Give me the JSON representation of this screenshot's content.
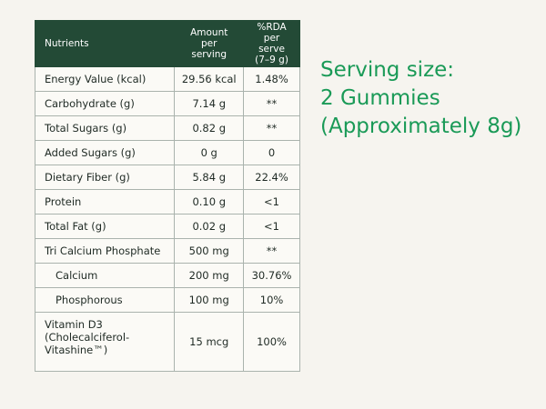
{
  "table": {
    "headers": {
      "nutrients": "Nutrients",
      "amount": "Amount\nper\nserving",
      "rda": "%RDA\nper serve\n(7–9 g)"
    },
    "rows": [
      {
        "nutrient": "Energy Value (kcal)",
        "amount": "29.56 kcal",
        "rda": "1.48%"
      },
      {
        "nutrient": "Carbohydrate (g)",
        "amount": "7.14 g",
        "rda": "**"
      },
      {
        "nutrient": "Total Sugars (g)",
        "amount": "0.82 g",
        "rda": "**"
      },
      {
        "nutrient": "Added Sugars (g)",
        "amount": "0 g",
        "rda": "0"
      },
      {
        "nutrient": "Dietary Fiber (g)",
        "amount": "5.84 g",
        "rda": "22.4%"
      },
      {
        "nutrient": "Protein",
        "amount": "0.10 g",
        "rda": "<1"
      },
      {
        "nutrient": "Total Fat (g)",
        "amount": "0.02 g",
        "rda": "<1"
      },
      {
        "nutrient": "Tri Calcium Phosphate",
        "amount": "500 mg",
        "rda": "**"
      },
      {
        "nutrient": "Calcium",
        "amount": "200 mg",
        "rda": "30.76%"
      },
      {
        "nutrient": "Phosphorous",
        "amount": "100 mg",
        "rda": "10%"
      },
      {
        "nutrient": "Vitamin D3\n(Cholecalciferol-\nVitashine™)",
        "amount": "15 mcg",
        "rda": "100%"
      }
    ]
  },
  "serving": {
    "line1": "Serving size:",
    "line2": "2 Gummies",
    "line3": "(Approximately 8g)"
  },
  "colors": {
    "header_bg": "#234a36",
    "accent_green": "#1a9a57",
    "background": "#f6f4ef"
  }
}
